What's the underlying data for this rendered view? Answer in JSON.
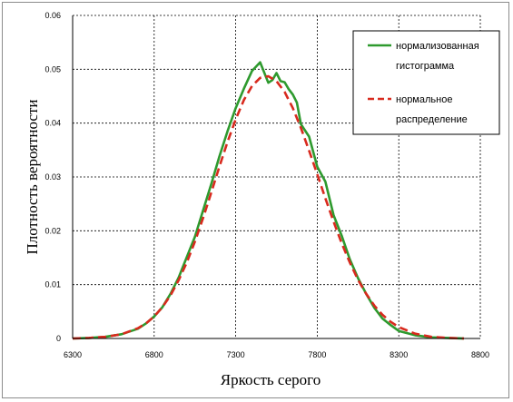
{
  "chart_data": {
    "type": "line",
    "xlabel": "Яркость серого",
    "ylabel": "Плотность вероятности",
    "xlim": [
      6300,
      8800
    ],
    "ylim": [
      0,
      0.06
    ],
    "x_ticks": [
      "6300",
      "6800",
      "7300",
      "7800",
      "8300",
      "8800"
    ],
    "y_ticks": [
      "0",
      "0.01",
      "0.02",
      "0.03",
      "0.04",
      "0.05",
      "0.06"
    ],
    "grid": "dashed",
    "legend_position": "top-right",
    "series": [
      {
        "name": "нормализованная гистограмма",
        "color": "#2e9a2e",
        "style": "solid",
        "x": [
          6300,
          6400,
          6500,
          6600,
          6700,
          6750,
          6800,
          6850,
          6900,
          6950,
          7000,
          7050,
          7100,
          7150,
          7200,
          7250,
          7300,
          7350,
          7400,
          7450,
          7500,
          7525,
          7550,
          7575,
          7600,
          7625,
          7650,
          7675,
          7700,
          7750,
          7800,
          7850,
          7900,
          7950,
          8000,
          8050,
          8100,
          8150,
          8200,
          8250,
          8300,
          8400,
          8500,
          8600,
          8700
        ],
        "values": [
          0,
          0.0001,
          0.0003,
          0.0008,
          0.0018,
          0.0028,
          0.0041,
          0.0058,
          0.0083,
          0.0113,
          0.0151,
          0.0189,
          0.0238,
          0.0287,
          0.0338,
          0.0385,
          0.0428,
          0.0464,
          0.0497,
          0.0513,
          0.0475,
          0.048,
          0.0493,
          0.0478,
          0.0476,
          0.0463,
          0.0453,
          0.0438,
          0.0398,
          0.0375,
          0.0319,
          0.0291,
          0.0229,
          0.0191,
          0.0147,
          0.0112,
          0.0083,
          0.0057,
          0.0037,
          0.0025,
          0.0014,
          0.0006,
          0.0002,
          0.0001,
          0
        ]
      },
      {
        "name": "нормальное распределение",
        "color": "#d82a1e",
        "style": "dashed",
        "x": [
          6300,
          6400,
          6500,
          6600,
          6700,
          6750,
          6800,
          6850,
          6900,
          6950,
          7000,
          7050,
          7100,
          7150,
          7200,
          7250,
          7300,
          7350,
          7400,
          7450,
          7500,
          7550,
          7600,
          7650,
          7700,
          7750,
          7800,
          7850,
          7900,
          7950,
          8000,
          8050,
          8100,
          8150,
          8200,
          8250,
          8300,
          8400,
          8500,
          8600,
          8700
        ],
        "values": [
          0,
          0.0001,
          0.0003,
          0.0008,
          0.0019,
          0.0028,
          0.0041,
          0.0058,
          0.008,
          0.0108,
          0.0141,
          0.018,
          0.0224,
          0.0271,
          0.0319,
          0.0365,
          0.0407,
          0.0443,
          0.0469,
          0.0484,
          0.0487,
          0.0478,
          0.0458,
          0.0428,
          0.0391,
          0.0349,
          0.0305,
          0.026,
          0.0217,
          0.0177,
          0.0141,
          0.0109,
          0.0083,
          0.0061,
          0.0044,
          0.0031,
          0.0021,
          0.0009,
          0.0003,
          0.0001,
          0
        ]
      }
    ]
  }
}
